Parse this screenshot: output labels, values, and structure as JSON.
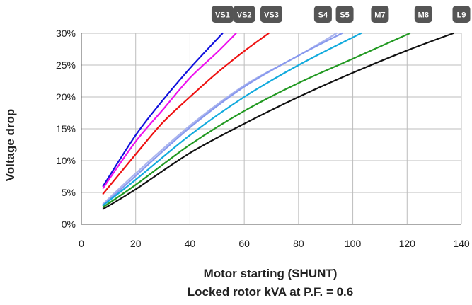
{
  "chart_data": {
    "type": "line",
    "xlabel_lines": [
      "Motor starting (SHUNT)",
      "Locked rotor kVA at P.F. = 0.6"
    ],
    "ylabel": "Voltage drop",
    "xlim": [
      0,
      140
    ],
    "ylim": [
      0,
      30
    ],
    "x_ticks": [
      "0",
      "20",
      "40",
      "60",
      "80",
      "100",
      "120",
      "140"
    ],
    "y_ticks": [
      "0%",
      "5%",
      "10%",
      "15%",
      "20%",
      "25%",
      "30%"
    ],
    "grid": "vertical and horizontal",
    "series": [
      {
        "name": "VS1",
        "color": "#1010dd",
        "points": [
          [
            8,
            6.0
          ],
          [
            20,
            14.0
          ],
          [
            30,
            19.5
          ],
          [
            40,
            24.5
          ],
          [
            52,
            30.0
          ]
        ]
      },
      {
        "name": "VS2",
        "color": "#ee11ee",
        "points": [
          [
            8,
            5.7
          ],
          [
            20,
            13.0
          ],
          [
            30,
            18.0
          ],
          [
            40,
            23.0
          ],
          [
            50,
            27.0
          ],
          [
            57,
            30.0
          ]
        ]
      },
      {
        "name": "VS3",
        "color": "#ee1111",
        "points": [
          [
            8,
            4.8
          ],
          [
            20,
            11.0
          ],
          [
            30,
            16.0
          ],
          [
            40,
            20.0
          ],
          [
            50,
            23.8
          ],
          [
            60,
            27.2
          ],
          [
            69,
            30.0
          ]
        ]
      },
      {
        "name": "S4",
        "color": "#aab4ee",
        "points": [
          [
            8,
            3.2
          ],
          [
            20,
            8.0
          ],
          [
            40,
            15.5
          ],
          [
            60,
            21.8
          ],
          [
            80,
            26.5
          ],
          [
            94,
            30.0
          ]
        ]
      },
      {
        "name": "S5",
        "color": "#8899ee",
        "points": [
          [
            8,
            3.0
          ],
          [
            20,
            7.6
          ],
          [
            40,
            15.2
          ],
          [
            60,
            21.6
          ],
          [
            80,
            26.5
          ],
          [
            96,
            30.0
          ]
        ]
      },
      {
        "name": "M7",
        "color": "#11aadd",
        "points": [
          [
            8,
            3.0
          ],
          [
            20,
            7.0
          ],
          [
            40,
            14.0
          ],
          [
            60,
            20.0
          ],
          [
            80,
            25.0
          ],
          [
            103,
            30.0
          ]
        ]
      },
      {
        "name": "M8",
        "color": "#229922",
        "points": [
          [
            8,
            2.7
          ],
          [
            20,
            6.2
          ],
          [
            40,
            12.5
          ],
          [
            60,
            17.8
          ],
          [
            80,
            22.2
          ],
          [
            100,
            26.0
          ],
          [
            121,
            30.0
          ]
        ]
      },
      {
        "name": "L9",
        "color": "#111111",
        "points": [
          [
            8,
            2.4
          ],
          [
            20,
            5.5
          ],
          [
            40,
            11.2
          ],
          [
            60,
            15.8
          ],
          [
            80,
            20.0
          ],
          [
            100,
            23.8
          ],
          [
            120,
            27.3
          ],
          [
            137,
            30.0
          ]
        ]
      }
    ],
    "badges": [
      {
        "label": "VS1",
        "x": 52
      },
      {
        "label": "VS2",
        "x": 60
      },
      {
        "label": "VS3",
        "x": 70
      },
      {
        "label": "S4",
        "x": 89
      },
      {
        "label": "S5",
        "x": 97
      },
      {
        "label": "M7",
        "x": 110
      },
      {
        "label": "M8",
        "x": 126
      },
      {
        "label": "L9",
        "x": 140
      }
    ],
    "badge_color": "#555555"
  }
}
